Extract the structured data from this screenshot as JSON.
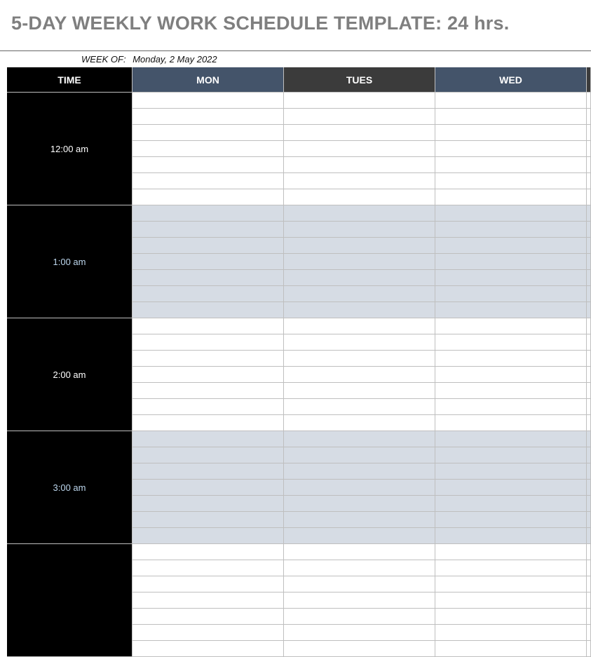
{
  "title": "5-DAY WEEKLY WORK SCHEDULE TEMPLATE: 24 hrs.",
  "week_of": {
    "label": "WEEK OF:",
    "value": "Monday, 2 May 2022"
  },
  "header": {
    "time_label": "TIME",
    "days": [
      {
        "label": "MON",
        "color": "#44546a"
      },
      {
        "label": "TUES",
        "color": "#3b3b3b"
      },
      {
        "label": "WED",
        "color": "#44546a"
      },
      {
        "label": "",
        "color": "#3b3b3b"
      }
    ]
  },
  "hours": [
    {
      "label": "12:00 am",
      "label_color": "#ffffff",
      "shaded": false
    },
    {
      "label": "1:00 am",
      "label_color": "#bdd7ee",
      "shaded": true
    },
    {
      "label": "2:00 am",
      "label_color": "#ffffff",
      "shaded": false
    },
    {
      "label": "3:00 am",
      "label_color": "#bdd7ee",
      "shaded": true
    },
    {
      "label": "",
      "label_color": "#ffffff",
      "shaded": false
    }
  ],
  "rows_per_hour": 7,
  "colors": {
    "shade": "#d6dce4",
    "time_bg": "#000000",
    "title": "#7f7f7f"
  }
}
